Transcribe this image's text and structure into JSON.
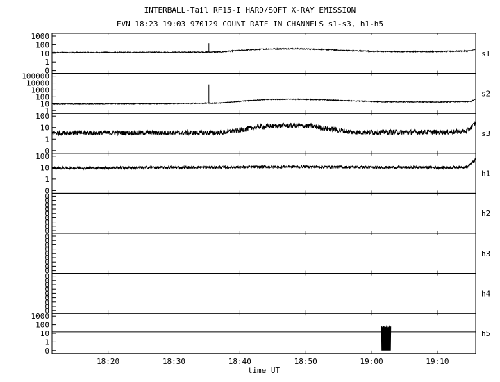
{
  "chart_data": {
    "type": "line",
    "title": "INTERBALL-Tail RF15-I HARD/SOFT X-RAY EMISSION",
    "subtitle": "EVN 18:23 19:03 970129  COUNT RATE IN CHANNELS s1-s3, h1-h5",
    "xlabel": "time UT",
    "x_ticks": [
      "18:20",
      "18:30",
      "18:40",
      "18:50",
      "19:00",
      "19:10"
    ],
    "x_tick_minutes": [
      20,
      30,
      40,
      50,
      60,
      70
    ],
    "x_range_minutes": [
      11.5,
      75.8
    ],
    "y_scale": "log",
    "grid": false,
    "panels": [
      {
        "name": "s1",
        "ytick_labels": [
          "1000",
          "100",
          "10",
          "1",
          "0"
        ],
        "ytick_values": [
          1000,
          100,
          10,
          1,
          0.1
        ],
        "profile": [
          [
            11.5,
            12
          ],
          [
            30,
            13
          ],
          [
            37,
            14
          ],
          [
            40,
            22
          ],
          [
            44,
            32
          ],
          [
            48,
            35
          ],
          [
            52,
            30
          ],
          [
            57,
            20
          ],
          [
            62,
            16
          ],
          [
            70,
            16
          ],
          [
            75,
            19
          ],
          [
            75.8,
            30
          ]
        ],
        "noise": 0.06,
        "spikes": [
          [
            35.3,
            150
          ]
        ]
      },
      {
        "name": "s2",
        "ytick_labels": [
          "100000",
          "10000",
          "1000",
          "100",
          "10",
          "1"
        ],
        "ytick_values": [
          100000,
          10000,
          1000,
          100,
          10,
          1
        ],
        "profile": [
          [
            11.5,
            9
          ],
          [
            30,
            10
          ],
          [
            37,
            12
          ],
          [
            40,
            22
          ],
          [
            44,
            40
          ],
          [
            48,
            45
          ],
          [
            52,
            38
          ],
          [
            57,
            25
          ],
          [
            62,
            18
          ],
          [
            70,
            17
          ],
          [
            75,
            20
          ],
          [
            75.8,
            45
          ]
        ],
        "noise": 0.06,
        "spikes": [
          [
            35.3,
            6000
          ]
        ]
      },
      {
        "name": "s3",
        "ytick_labels": [
          "100",
          "10",
          "1",
          "0"
        ],
        "ytick_values": [
          100,
          10,
          1,
          0.1
        ],
        "profile": [
          [
            11.5,
            3.5
          ],
          [
            37,
            3.5
          ],
          [
            40,
            6
          ],
          [
            43,
            12
          ],
          [
            47,
            15
          ],
          [
            51,
            13
          ],
          [
            54,
            7
          ],
          [
            57,
            4
          ],
          [
            72,
            4
          ],
          [
            74.5,
            5
          ],
          [
            75.8,
            25
          ]
        ],
        "noise": 0.22,
        "spikes": []
      },
      {
        "name": "h1",
        "ytick_labels": [
          "100",
          "10",
          "1",
          "0"
        ],
        "ytick_values": [
          100,
          10,
          1,
          0.1
        ],
        "profile": [
          [
            11.5,
            9
          ],
          [
            40,
            11
          ],
          [
            48,
            12
          ],
          [
            56,
            11
          ],
          [
            72,
            10
          ],
          [
            74.5,
            12
          ],
          [
            75.8,
            50
          ]
        ],
        "noise": 0.12,
        "spikes": []
      },
      {
        "name": "h2",
        "ytick_labels": [
          "0",
          "0",
          "0",
          "0",
          "0",
          "0",
          "0",
          "0",
          "0"
        ],
        "flat": true
      },
      {
        "name": "h3",
        "ytick_labels": [
          "0",
          "0",
          "0",
          "0",
          "0",
          "0",
          "0",
          "0",
          "0"
        ],
        "flat": true
      },
      {
        "name": "h4",
        "ytick_labels": [
          "0",
          "0",
          "0",
          "0",
          "0",
          "0",
          "0",
          "0",
          "0"
        ],
        "flat": true
      },
      {
        "name": "h5",
        "ytick_labels": [
          "1000",
          "100",
          "10",
          "1",
          "0"
        ],
        "ytick_values": [
          1000,
          100,
          10,
          1,
          0.1
        ],
        "baseline": 15,
        "burst": {
          "start": 61.5,
          "end": 62.9,
          "high": 70,
          "low": 0.1
        }
      }
    ]
  }
}
